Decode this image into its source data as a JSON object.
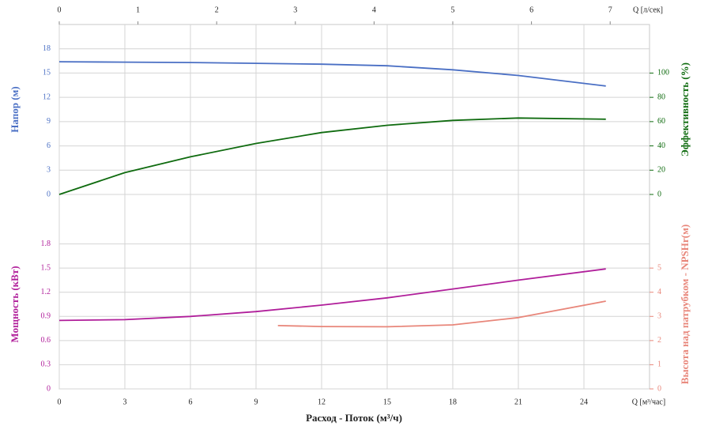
{
  "chart_data": [
    {
      "type": "line",
      "xlim": [
        0,
        27
      ],
      "x2label": "Q [л/сек]",
      "x2lim": [
        0,
        7.5
      ],
      "x2ticks": [
        0,
        1,
        2,
        3,
        4,
        5,
        6,
        7
      ],
      "ylabel": "Напор (м)",
      "ylim": [
        0,
        21
      ],
      "yticks": [
        0,
        3,
        6,
        9,
        12,
        15,
        18
      ],
      "ycolor": "#4a6fc4",
      "y2label": "Эффективность (%)",
      "y2lim": [
        0,
        140
      ],
      "y2ticks": [
        0,
        20,
        40,
        60,
        80,
        100
      ],
      "y2color": "#0f6b0f",
      "grid": true,
      "series": [
        {
          "name": "Напор",
          "color": "#4a6fc4",
          "x": [
            0,
            3,
            6,
            9,
            12,
            15,
            18,
            21,
            25
          ],
          "values": [
            16.4,
            16.35,
            16.3,
            16.2,
            16.1,
            15.9,
            15.4,
            14.7,
            13.4
          ]
        },
        {
          "name": "Эффективность",
          "color": "#0f6b0f",
          "axis": "y2",
          "x": [
            0,
            3,
            6,
            9,
            12,
            15,
            18,
            21,
            25
          ],
          "values": [
            0,
            18,
            31,
            42,
            51,
            57,
            61,
            63,
            62
          ]
        }
      ]
    },
    {
      "type": "line",
      "xlabel": "Расход - Поток (м³/ч)",
      "xunit": "Q [м³/час]",
      "xlim": [
        0,
        27
      ],
      "xticks": [
        0,
        3,
        6,
        9,
        12,
        15,
        18,
        21,
        24
      ],
      "ylabel": "Мощность (кВт)",
      "ylim": [
        0,
        2.1
      ],
      "yticks": [
        0,
        0.3,
        0.6,
        0.9,
        1.2,
        1.5,
        1.8
      ],
      "ycolor": "#b01e9a",
      "y2label": "Высота над патрубком - NPSHr(м)",
      "y2lim": [
        0,
        7
      ],
      "y2ticks": [
        0,
        1,
        2,
        3,
        4,
        5
      ],
      "y2color": "#e8867a",
      "grid": true,
      "series": [
        {
          "name": "Мощность",
          "color": "#b01e9a",
          "x": [
            0,
            3,
            6,
            9,
            12,
            15,
            18,
            21,
            25
          ],
          "values": [
            0.85,
            0.86,
            0.9,
            0.96,
            1.04,
            1.13,
            1.24,
            1.35,
            1.49
          ]
        },
        {
          "name": "NPSHr",
          "color": "#e8867a",
          "axis": "y2",
          "x": [
            10,
            12,
            15,
            18,
            21,
            25
          ],
          "values": [
            2.62,
            2.58,
            2.57,
            2.65,
            2.95,
            3.63
          ]
        }
      ]
    }
  ]
}
